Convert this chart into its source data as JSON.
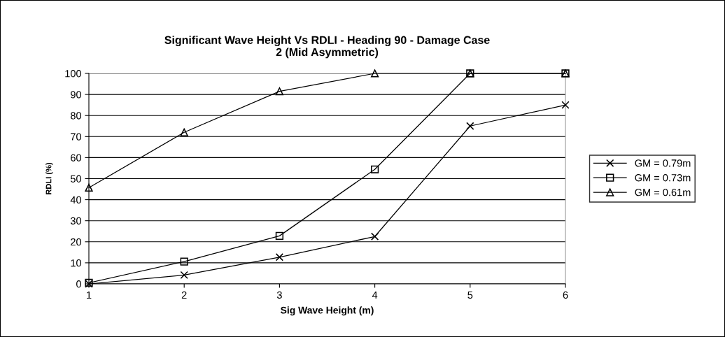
{
  "chart_data": {
    "type": "line",
    "title": "Significant Wave Height Vs RDLI - Heading 90 - Damage Case\n2 (Mid Asymmetric)",
    "xlabel": "Sig Wave Height (m)",
    "ylabel": "RDLI (%)",
    "x": [
      1,
      2,
      3,
      4,
      5,
      6
    ],
    "series": [
      {
        "name": "GM = 0.79m",
        "color": "#000000",
        "marker": "cross",
        "values": [
          0,
          4.2,
          12.7,
          22.5,
          75,
          85
        ]
      },
      {
        "name": "GM = 0.73m",
        "color": "#000000",
        "marker": "square",
        "values": [
          0.5,
          10.6,
          22.8,
          54.4,
          100,
          100
        ]
      },
      {
        "name": "GM = 0.61m",
        "color": "#000000",
        "marker": "triangle",
        "values": [
          45.7,
          72,
          91.5,
          100,
          100,
          100
        ]
      }
    ],
    "xlim": [
      1,
      6
    ],
    "xticks": [
      1,
      2,
      3,
      4,
      5,
      6
    ],
    "ylim": [
      0,
      100
    ],
    "yticks": [
      0,
      10,
      20,
      30,
      40,
      50,
      60,
      70,
      80,
      90,
      100
    ],
    "grid": "y",
    "legend": "right",
    "line_style": "solid"
  }
}
